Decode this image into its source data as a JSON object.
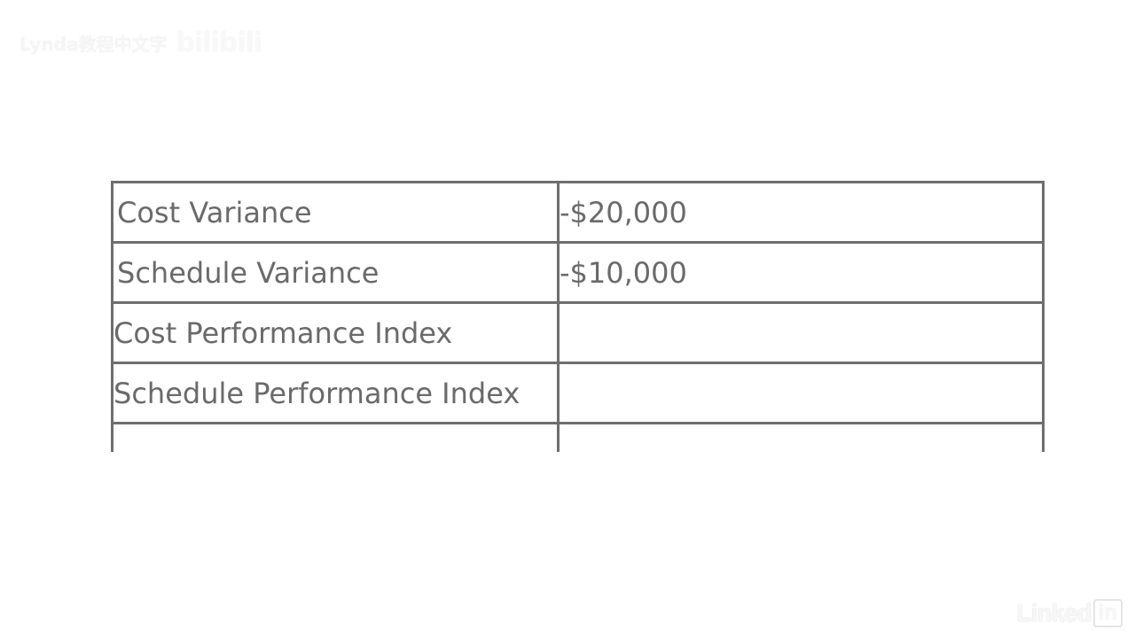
{
  "watermark": {
    "text": "Lynda教程中文字",
    "logo": "bilibili"
  },
  "table": {
    "rows": [
      {
        "label": "Cost Variance",
        "value": "-$20,000"
      },
      {
        "label": "Schedule Variance",
        "value": "-$10,000"
      },
      {
        "label": "Cost Performance Index",
        "value": ""
      },
      {
        "label": "Schedule Performance Index",
        "value": ""
      },
      {
        "label": "",
        "value": ""
      }
    ]
  },
  "brand": {
    "name": "Linked",
    "box": "in"
  },
  "colors": {
    "border": "#6e6e6e",
    "text": "#6a6a6a",
    "background": "#ffffff"
  }
}
